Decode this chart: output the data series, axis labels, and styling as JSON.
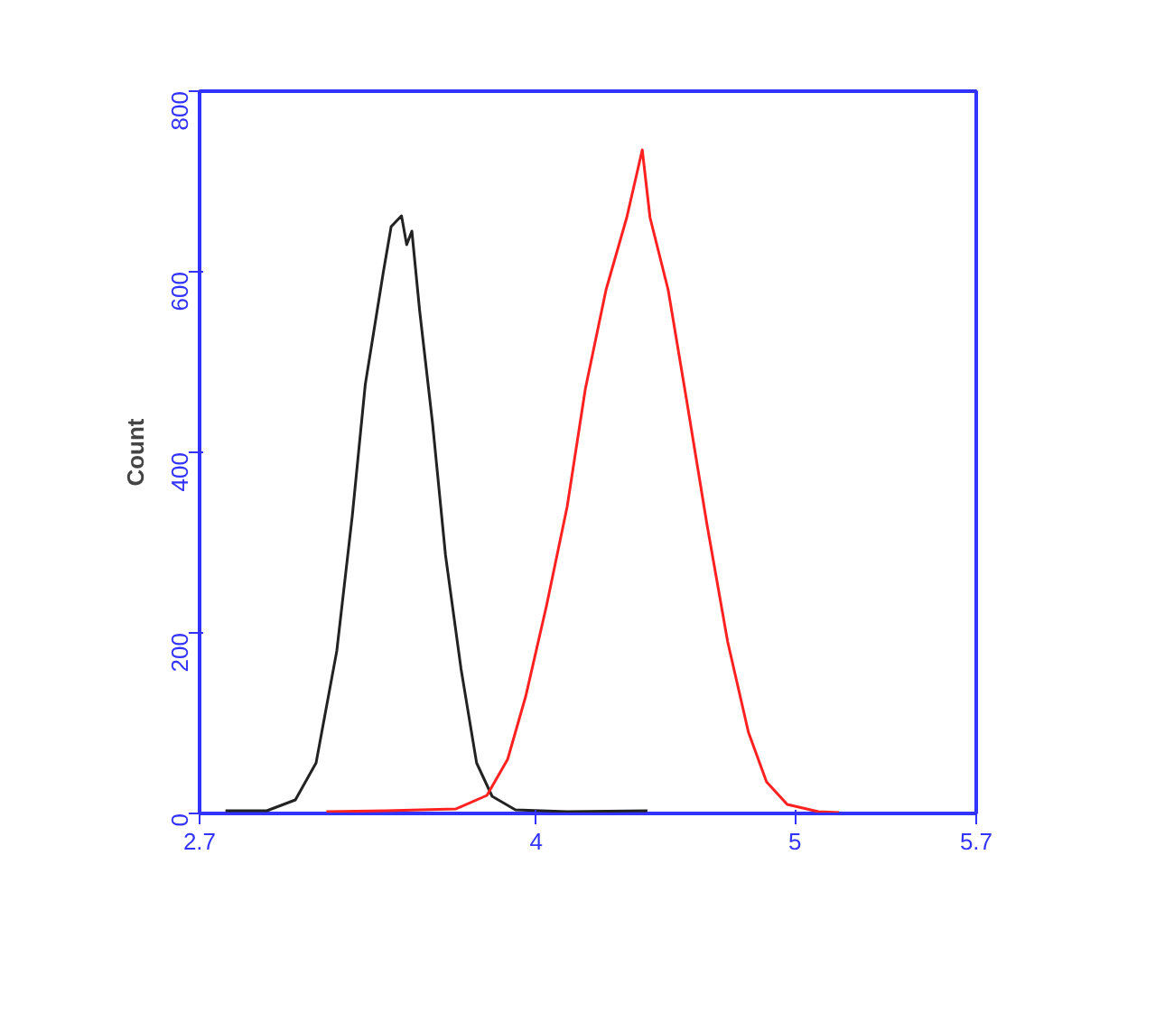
{
  "chart_data": {
    "type": "line",
    "ylabel": "Count",
    "xlim": [
      2.7,
      5.7
    ],
    "ylim": [
      0,
      800
    ],
    "xticks": [
      2.7,
      4,
      5,
      5.7
    ],
    "yticks": [
      0,
      200,
      400,
      600,
      800
    ],
    "grid": false,
    "marker": "none",
    "line_style": "solid",
    "series": [
      {
        "color": "#222222",
        "x": [
          2.8,
          2.96,
          3.07,
          3.15,
          3.23,
          3.29,
          3.34,
          3.41,
          3.44,
          3.48,
          3.5,
          3.52,
          3.55,
          3.6,
          3.65,
          3.71,
          3.77,
          3.83,
          3.92,
          4.12,
          4.43
        ],
        "values": [
          3,
          3,
          15,
          56,
          180,
          330,
          475,
          600,
          650,
          662,
          630,
          645,
          557,
          432,
          286,
          160,
          56,
          19,
          4,
          2,
          3
        ]
      },
      {
        "color": "#ff2020",
        "x": [
          3.19,
          3.42,
          3.69,
          3.81,
          3.89,
          3.96,
          4.04,
          4.12,
          4.19,
          4.27,
          4.35,
          4.41,
          4.44,
          4.51,
          4.58,
          4.66,
          4.74,
          4.82,
          4.89,
          4.97,
          5.09,
          5.17
        ],
        "values": [
          2,
          3,
          5,
          20,
          60,
          130,
          230,
          340,
          470,
          580,
          660,
          735,
          660,
          580,
          460,
          320,
          190,
          90,
          35,
          10,
          2,
          1
        ]
      }
    ]
  }
}
